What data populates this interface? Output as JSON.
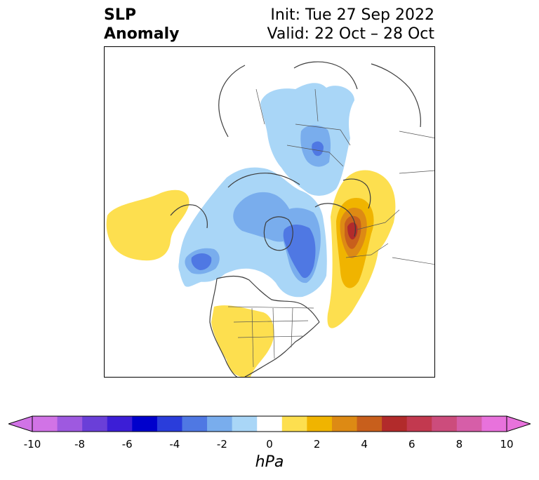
{
  "title": {
    "left_line1": "SLP",
    "left_line2": "Anomaly",
    "init": "Init: Tue 27 Sep 2022",
    "valid": "Valid: 22 Oct – 28 Oct"
  },
  "colorbar": {
    "unit": "hPa",
    "ticks": [
      "-10",
      "-8",
      "-6",
      "-4",
      "-2",
      "0",
      "2",
      "4",
      "6",
      "8",
      "10"
    ],
    "levels": [
      -10,
      -9,
      -8,
      -7,
      -6,
      -5,
      -4,
      -3,
      -2,
      -1,
      1,
      2,
      3,
      4,
      5,
      6,
      7,
      8,
      9,
      10
    ],
    "colors": [
      "#d173e6",
      "#9e59e0",
      "#6a3fd8",
      "#3c1ed6",
      "#0000cc",
      "#2a3ddb",
      "#4f78e3",
      "#79aded",
      "#a9d6f7",
      "#ffffff",
      "#fddf4f",
      "#f0b400",
      "#dd8a14",
      "#c85f1c",
      "#b22b2b",
      "#c2394f",
      "#cc4c7c",
      "#d65ea8",
      "#e872dc"
    ],
    "extend_low": "#d173e6",
    "extend_high": "#e872dc"
  },
  "map": {
    "projection": "polar-stereographic",
    "features": [
      "coastlines",
      "country-borders",
      "state-borders"
    ],
    "anomalies": [
      {
        "region": "western-russia",
        "sign": "positive",
        "peak_hPa": 7
      },
      {
        "region": "southern-us",
        "sign": "positive",
        "peak_hPa": 1
      },
      {
        "region": "north-pacific",
        "sign": "positive",
        "peak_hPa": 1
      },
      {
        "region": "greenland-canada",
        "sign": "negative",
        "peak_hPa": -5
      },
      {
        "region": "gulf-of-alaska",
        "sign": "negative",
        "peak_hPa": -5
      },
      {
        "region": "arctic-ocean",
        "sign": "negative",
        "peak_hPa": -3
      },
      {
        "region": "siberia",
        "sign": "negative",
        "peak_hPa": -3
      }
    ]
  }
}
